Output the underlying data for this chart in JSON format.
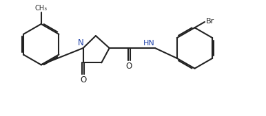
{
  "bg_color": "#ffffff",
  "line_color": "#222222",
  "line_width": 1.5,
  "fig_width": 3.86,
  "fig_height": 1.69,
  "dpi": 100,
  "xlim": [
    0,
    10
  ],
  "ylim": [
    0,
    4.4
  ]
}
